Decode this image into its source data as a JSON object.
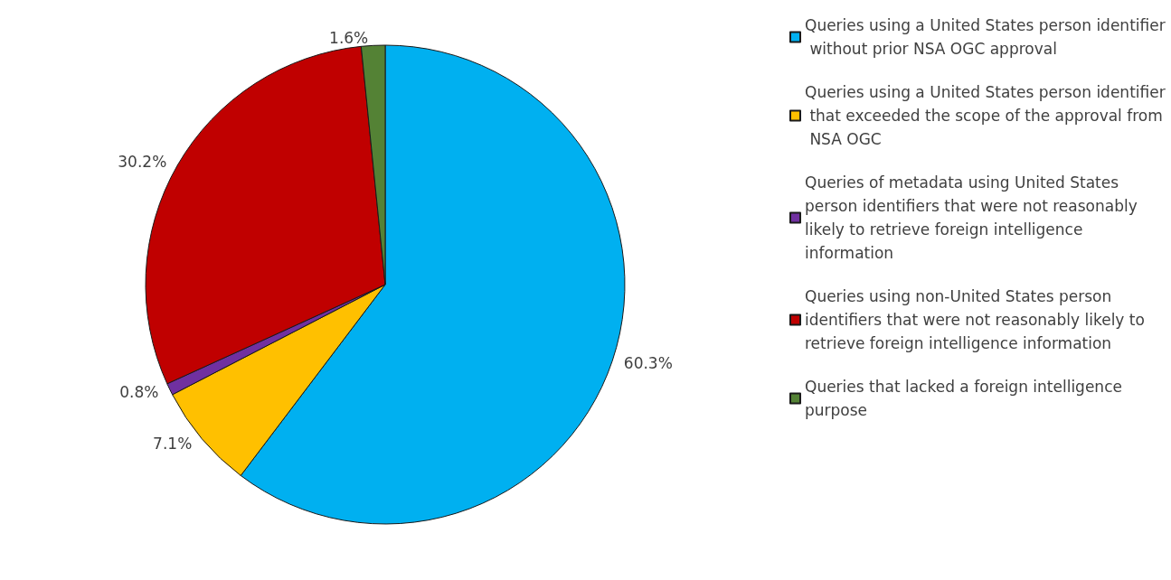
{
  "chart_data": {
    "type": "pie",
    "categories": [
      "Queries using a United States person identifier without prior NSA OGC approval",
      "Queries using a United States person identifier that exceeded the scope of the approval from NSA OGC",
      "Queries of metadata using United States person identifiers that were not reasonably likely to retrieve foreign intelligence information",
      "Queries using non-United States person identifiers that were not reasonably likely to retrieve foreign intelligence information",
      "Queries that lacked a foreign intelligence purpose"
    ],
    "values": [
      60.3,
      7.1,
      0.8,
      30.2,
      1.6
    ],
    "value_labels": [
      "60.3%",
      "7.1%",
      "0.8%",
      "30.2%",
      "1.6%"
    ],
    "colors": [
      "#00b0f0",
      "#ffc000",
      "#7030a0",
      "#c00000",
      "#548235"
    ],
    "legend": "right"
  }
}
